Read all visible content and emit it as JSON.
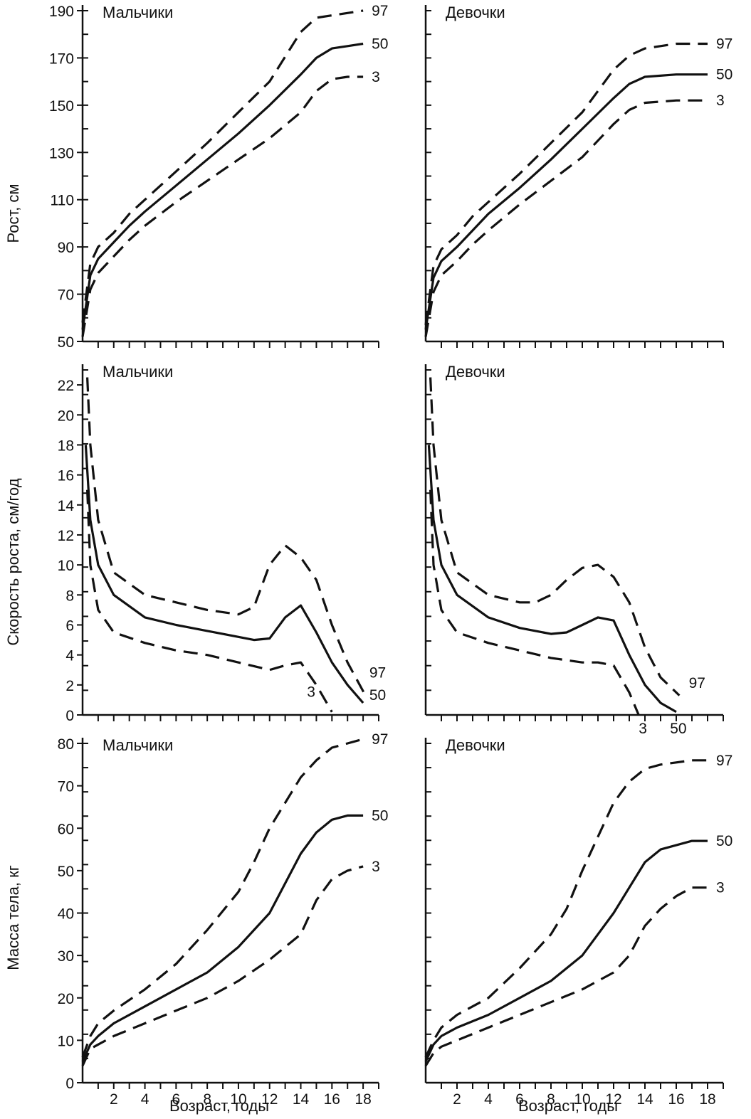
{
  "ylabels": {
    "height": "Рост, см",
    "velocity": "Скорость роста, см/год",
    "weight": "Масса тела, кг"
  },
  "xlabel": "Возраст, годы",
  "chart_data": [
    {
      "type": "line",
      "title": "Мальчики",
      "xlim": [
        0,
        19
      ],
      "ylim": [
        50,
        190
      ],
      "yticks": [
        50,
        70,
        90,
        110,
        130,
        150,
        170,
        190
      ],
      "xticks": [],
      "series": [
        {
          "name": "97",
          "dash": true,
          "x": [
            0,
            0.5,
            1,
            2,
            3,
            4,
            6,
            8,
            10,
            12,
            14,
            15,
            16,
            17,
            18
          ],
          "values": [
            58,
            83,
            90,
            96,
            104,
            110,
            122,
            134,
            147,
            160,
            181,
            187,
            188,
            189,
            190
          ]
        },
        {
          "name": "50",
          "dash": false,
          "x": [
            0,
            0.5,
            1,
            2,
            3,
            4,
            6,
            8,
            10,
            12,
            14,
            15,
            16,
            17,
            18
          ],
          "values": [
            55,
            78,
            85,
            92,
            99,
            105,
            116,
            127,
            138,
            150,
            163,
            170,
            174,
            175,
            176
          ]
        },
        {
          "name": "3",
          "dash": true,
          "x": [
            0,
            0.5,
            1,
            2,
            3,
            4,
            6,
            8,
            10,
            12,
            14,
            15,
            16,
            17,
            18
          ],
          "values": [
            52,
            72,
            79,
            86,
            93,
            99,
            109,
            118,
            127,
            136,
            147,
            156,
            161,
            162,
            162
          ]
        }
      ]
    },
    {
      "type": "line",
      "title": "Девочки",
      "xlim": [
        0,
        19
      ],
      "ylim": [
        50,
        190
      ],
      "yticks": [],
      "xticks": [],
      "series": [
        {
          "name": "97",
          "dash": true,
          "x": [
            0,
            0.5,
            1,
            2,
            3,
            4,
            6,
            8,
            10,
            12,
            13,
            14,
            16,
            18
          ],
          "values": [
            57,
            82,
            89,
            95,
            103,
            109,
            121,
            134,
            147,
            165,
            171,
            174,
            176,
            176
          ]
        },
        {
          "name": "50",
          "dash": false,
          "x": [
            0,
            0.5,
            1,
            2,
            3,
            4,
            6,
            8,
            10,
            12,
            13,
            14,
            16,
            18
          ],
          "values": [
            55,
            77,
            84,
            90,
            97,
            104,
            115,
            127,
            140,
            153,
            159,
            162,
            163,
            163
          ]
        },
        {
          "name": "3",
          "dash": true,
          "x": [
            0,
            0.5,
            1,
            2,
            3,
            4,
            6,
            8,
            10,
            12,
            13,
            14,
            16,
            18
          ],
          "values": [
            52,
            71,
            78,
            84,
            91,
            97,
            108,
            118,
            128,
            142,
            148,
            151,
            152,
            152
          ]
        }
      ]
    },
    {
      "type": "line",
      "title": "Мальчики",
      "xlim": [
        0,
        19
      ],
      "ylim": [
        0,
        23
      ],
      "yticks": [
        0,
        2,
        4,
        6,
        8,
        10,
        12,
        14,
        16,
        18,
        20,
        22
      ],
      "xticks": [],
      "series": [
        {
          "name": "97",
          "dash": true,
          "x": [
            0.3,
            0.5,
            1,
            2,
            4,
            6,
            8,
            10,
            11,
            12,
            13,
            14,
            15,
            16,
            17,
            18.2
          ],
          "values": [
            22.5,
            18,
            13,
            9.5,
            8,
            7.5,
            7,
            6.7,
            7.2,
            10,
            11.3,
            10.5,
            9,
            6,
            3.5,
            1.2
          ]
        },
        {
          "name": "50",
          "dash": false,
          "x": [
            0.2,
            0.5,
            1,
            2,
            4,
            6,
            8,
            10,
            11,
            12,
            13,
            14,
            15,
            16,
            17,
            18
          ],
          "values": [
            18,
            13,
            10,
            8,
            6.5,
            6,
            5.6,
            5.2,
            5.0,
            5.1,
            6.5,
            7.3,
            5.5,
            3.5,
            2.0,
            0.8
          ]
        },
        {
          "name": "3",
          "dash": true,
          "x": [
            0.3,
            0.5,
            1,
            2,
            4,
            6,
            8,
            10,
            12,
            13,
            14,
            15,
            16
          ],
          "values": [
            15,
            10,
            7,
            5.5,
            4.8,
            4.3,
            4,
            3.5,
            3.0,
            3.3,
            3.5,
            2,
            0.2
          ]
        }
      ]
    },
    {
      "type": "line",
      "title": "Девочки",
      "xlim": [
        0,
        19
      ],
      "ylim": [
        0,
        23
      ],
      "yticks": [],
      "xticks": [],
      "series": [
        {
          "name": "97",
          "dash": true,
          "x": [
            0.3,
            0.5,
            1,
            2,
            4,
            6,
            7,
            8,
            9,
            10,
            11,
            12,
            13,
            14,
            15,
            16.2
          ],
          "values": [
            22.5,
            18,
            13,
            9.5,
            8,
            7.5,
            7.5,
            8,
            9,
            9.8,
            10,
            9.2,
            7.5,
            4.5,
            2.5,
            1.3
          ]
        },
        {
          "name": "50",
          "dash": false,
          "x": [
            0.2,
            0.5,
            1,
            2,
            4,
            6,
            8,
            9,
            10,
            11,
            12,
            13,
            14,
            15,
            16
          ],
          "values": [
            18,
            13,
            10,
            8,
            6.5,
            5.8,
            5.4,
            5.5,
            6,
            6.5,
            6.3,
            4,
            2,
            0.8,
            0.2
          ]
        },
        {
          "name": "3",
          "dash": true,
          "x": [
            0.3,
            0.5,
            1,
            2,
            4,
            6,
            8,
            10,
            11,
            12,
            13,
            13.6
          ],
          "values": [
            15,
            10,
            7,
            5.5,
            4.8,
            4.3,
            3.8,
            3.5,
            3.5,
            3.3,
            1.5,
            0
          ]
        }
      ]
    },
    {
      "type": "line",
      "title": "Мальчики",
      "xlim": [
        0,
        19
      ],
      "ylim": [
        0,
        80
      ],
      "yticks": [
        0,
        10,
        20,
        30,
        40,
        50,
        60,
        70,
        80
      ],
      "xticks": [
        2,
        4,
        6,
        8,
        10,
        12,
        14,
        16,
        18
      ],
      "series": [
        {
          "name": "97",
          "dash": true,
          "x": [
            0,
            0.5,
            1,
            2,
            4,
            6,
            8,
            10,
            11,
            12,
            13,
            14,
            15,
            16,
            17,
            18
          ],
          "values": [
            6,
            11,
            14,
            17,
            22,
            28,
            36,
            45,
            52,
            60,
            66,
            72,
            76,
            79,
            80,
            81
          ]
        },
        {
          "name": "50",
          "dash": false,
          "x": [
            0,
            0.5,
            1,
            2,
            4,
            6,
            8,
            10,
            12,
            13,
            14,
            15,
            16,
            17,
            18
          ],
          "values": [
            5,
            9,
            11,
            14,
            18,
            22,
            26,
            32,
            40,
            47,
            54,
            59,
            62,
            63,
            63
          ]
        },
        {
          "name": "3",
          "dash": true,
          "x": [
            0,
            0.5,
            1,
            2,
            4,
            6,
            8,
            10,
            12,
            14,
            15,
            16,
            17,
            18
          ],
          "values": [
            4,
            8,
            9,
            11,
            14,
            17,
            20,
            24,
            29,
            35,
            43,
            48,
            50,
            51
          ]
        }
      ]
    },
    {
      "type": "line",
      "title": "Девочки",
      "xlim": [
        0,
        19
      ],
      "ylim": [
        0,
        80
      ],
      "yticks": [],
      "xticks": [
        2,
        4,
        6,
        8,
        10,
        12,
        14,
        16,
        18
      ],
      "series": [
        {
          "name": "97",
          "dash": true,
          "x": [
            0,
            0.5,
            1,
            2,
            4,
            6,
            8,
            9,
            10,
            11,
            12,
            13,
            14,
            15,
            16,
            17,
            18
          ],
          "values": [
            6,
            10,
            13,
            16,
            20,
            27,
            35,
            41,
            50,
            58,
            66,
            71,
            74,
            75,
            75.5,
            76,
            76
          ]
        },
        {
          "name": "50",
          "dash": false,
          "x": [
            0,
            0.5,
            1,
            2,
            4,
            6,
            8,
            10,
            11,
            12,
            13,
            14,
            15,
            16,
            17,
            18
          ],
          "values": [
            5,
            9,
            11,
            13,
            16,
            20,
            24,
            30,
            35,
            40,
            46,
            52,
            55,
            56,
            57,
            57
          ]
        },
        {
          "name": "3",
          "dash": true,
          "x": [
            0,
            0.5,
            1,
            2,
            4,
            6,
            8,
            10,
            12,
            13,
            14,
            15,
            16,
            17,
            18
          ],
          "values": [
            4,
            7,
            8.5,
            10,
            13,
            16,
            19,
            22,
            26,
            30,
            37,
            41,
            44,
            46,
            46
          ]
        }
      ]
    }
  ]
}
